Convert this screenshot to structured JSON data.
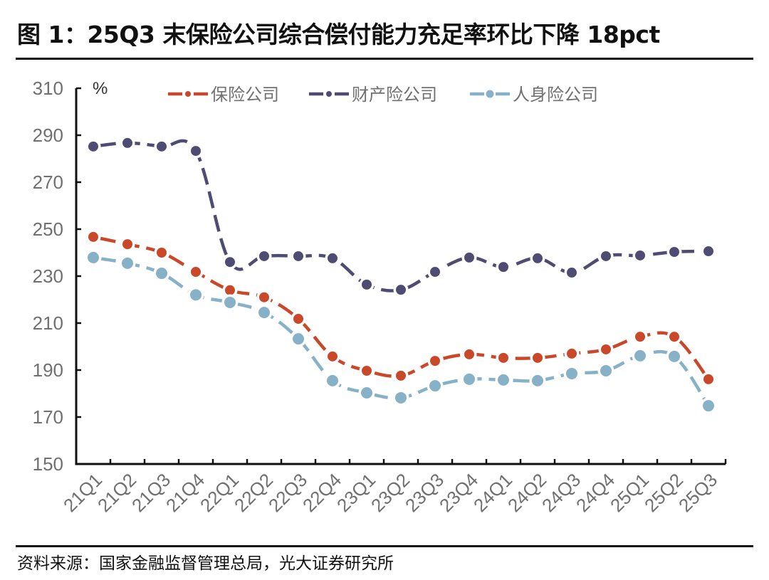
{
  "title": "图 1：25Q3 末保险公司综合偿付能力充足率环比下降 18pct",
  "source": "资料来源：国家金融监督管理总局，光大证券研究所",
  "chart_data": {
    "type": "line",
    "title": "图 1：25Q3 末保险公司综合偿付能力充足率环比下降 18pct",
    "ylabel": "%",
    "xlabel": "",
    "ylim": [
      150,
      310
    ],
    "yticks": [
      150,
      170,
      190,
      210,
      230,
      250,
      270,
      290,
      310
    ],
    "grid": false,
    "legend_position": "top",
    "categories": [
      "21Q1",
      "21Q2",
      "21Q3",
      "21Q4",
      "22Q1",
      "22Q2",
      "22Q3",
      "22Q4",
      "23Q1",
      "23Q2",
      "23Q3",
      "23Q4",
      "24Q1",
      "24Q2",
      "24Q3",
      "24Q4",
      "25Q1",
      "25Q2",
      "25Q3"
    ],
    "series": [
      {
        "name": "保险公司",
        "color": "#C9482A",
        "values": [
          246.7,
          243.6,
          240.0,
          231.8,
          224.0,
          221.0,
          211.8,
          195.8,
          189.7,
          187.6,
          193.9,
          196.7,
          195.2,
          195.2,
          197.0,
          198.8,
          204.2,
          204.2,
          186.1
        ]
      },
      {
        "name": "财产险公司",
        "color": "#4F4C74",
        "values": [
          285.2,
          286.7,
          285.2,
          283.3,
          236.0,
          238.5,
          238.5,
          237.6,
          226.4,
          224.2,
          231.8,
          237.9,
          233.9,
          237.6,
          231.5,
          238.5,
          238.8,
          240.3,
          240.6
        ]
      },
      {
        "name": "人身险公司",
        "color": "#86B1C6",
        "values": [
          237.9,
          235.5,
          231.2,
          222.0,
          218.8,
          214.5,
          203.3,
          185.5,
          180.3,
          178.2,
          183.3,
          186.1,
          185.8,
          185.5,
          188.5,
          189.7,
          196.1,
          195.8,
          174.8
        ]
      }
    ]
  }
}
